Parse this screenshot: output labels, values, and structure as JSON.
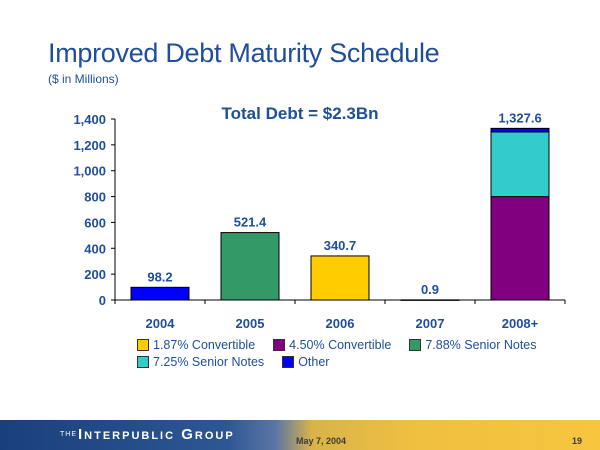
{
  "slide": {
    "title": "Improved Debt Maturity Schedule",
    "subtitle": "($ in Millions)"
  },
  "footer": {
    "the": "THE",
    "brand": "Interpublic Group",
    "date": "May 7, 2004",
    "page": "19"
  },
  "chart_data": {
    "type": "bar",
    "stacked": true,
    "title": "Total Debt = $2.3Bn",
    "categories": [
      "2004",
      "2005",
      "2006",
      "2007",
      "2008+"
    ],
    "ylim": [
      0,
      1400
    ],
    "yticks": [
      0,
      200,
      400,
      600,
      800,
      1000,
      1200,
      1400
    ],
    "ytick_labels": [
      "0",
      "200",
      "400",
      "600",
      "800",
      "1,000",
      "1,200",
      "1,400"
    ],
    "totals": [
      "98.2",
      "521.4",
      "340.7",
      "0.9",
      "1,327.6"
    ],
    "series": [
      {
        "name": "1.87% Convertible",
        "color": "#ffcc00",
        "values": [
          0,
          0,
          340.7,
          0,
          0
        ]
      },
      {
        "name": "4.50% Convertible",
        "color": "#800080",
        "values": [
          0,
          0,
          0,
          0,
          800
        ]
      },
      {
        "name": "7.88% Senior Notes",
        "color": "#339966",
        "values": [
          0,
          521.4,
          0,
          0,
          0
        ]
      },
      {
        "name": "7.25% Senior Notes",
        "color": "#33cccc",
        "values": [
          0,
          0,
          0,
          0,
          500
        ]
      },
      {
        "name": "Other",
        "color": "#0000ff",
        "values": [
          98.2,
          0,
          0,
          0.9,
          27.6
        ]
      }
    ]
  }
}
